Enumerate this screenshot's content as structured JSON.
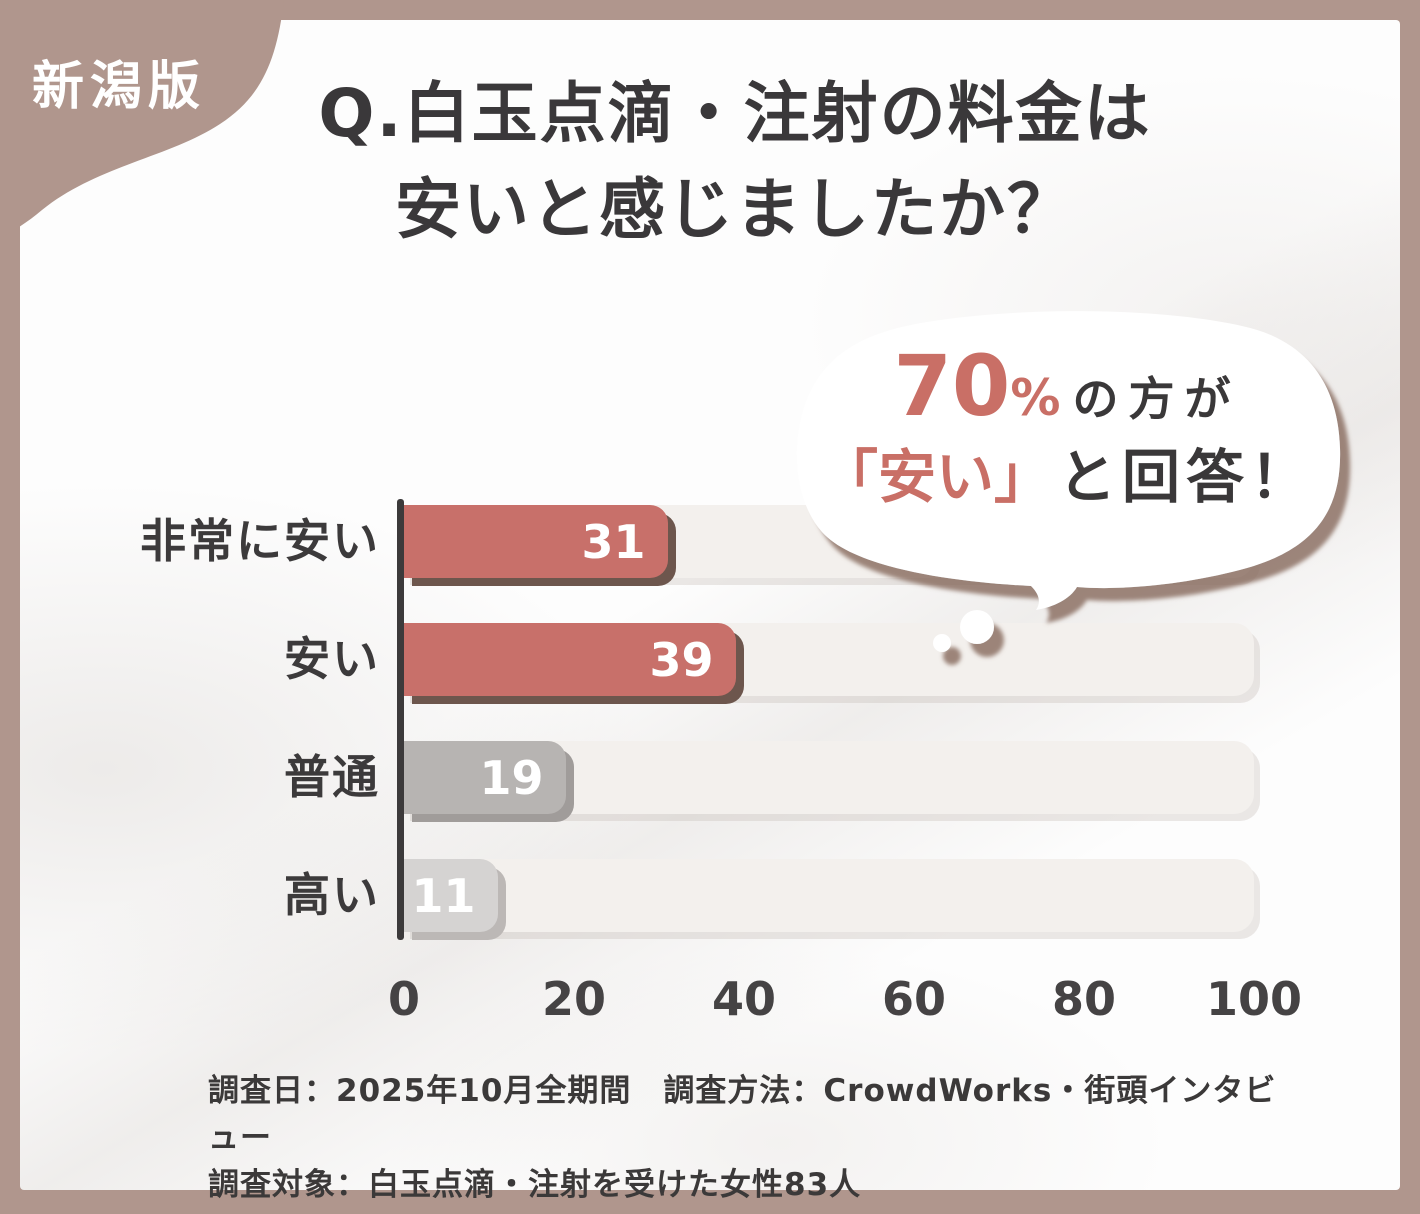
{
  "badge": {
    "label": "新潟版"
  },
  "title": {
    "line1": "Q.白玉点滴・注射の料金は",
    "line2": "安いと感じましたか？"
  },
  "callout": {
    "percent": "70",
    "percent_sign": "%",
    "suffix": "の方が",
    "quote": "「安い」",
    "answer": "と回答！"
  },
  "chart_data": {
    "type": "bar",
    "orientation": "horizontal",
    "categories": [
      "非常に安い",
      "安い",
      "普通",
      "高い"
    ],
    "values": [
      31,
      39,
      19,
      11
    ],
    "xlim": [
      0,
      100
    ],
    "x_ticks": [
      0,
      20,
      40,
      60,
      80,
      100
    ],
    "bar_colors": [
      "#c8706a",
      "#c8706a",
      "#b7b4b2",
      "#d5d3d2"
    ],
    "bar_shadows": [
      "#6d564d",
      "#6d564d",
      "#a09c9a",
      "#bcb8b6"
    ],
    "track_color": "#f3f0ed",
    "grid": false,
    "legend": "none",
    "value_labels": "inside-end",
    "title": "Q.白玉点滴・注射の料金は安いと感じましたか？"
  },
  "footnote": {
    "line1": "調査日：2025年10月全期間　調査方法：CrowdWorks・街頭インタビュー",
    "line2": "調査対象：白玉点滴・注射を受けた女性83人"
  },
  "colors": {
    "frame": "#b0968d",
    "content_bg": "#fdfdfd",
    "accent_red": "#c8706a",
    "accent_red_text": "#c96f66",
    "text_dark": "#3a383a",
    "bubble_shadow": "#86695c",
    "axis": "#3c3a3b"
  }
}
